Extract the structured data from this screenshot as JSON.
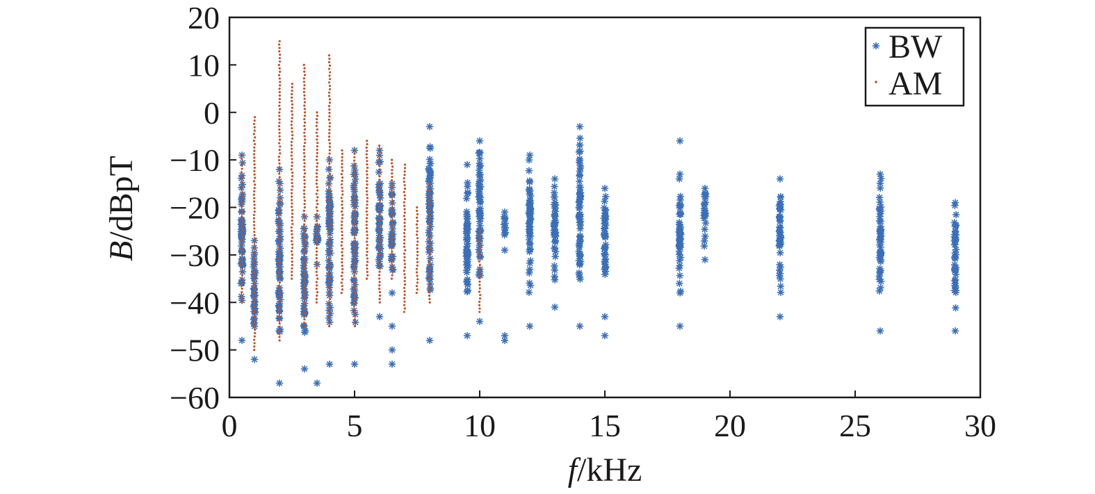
{
  "chart_data": {
    "type": "scatter",
    "xlabel_var": "f",
    "xlabel_unit": "/kHz",
    "ylabel_var": "B",
    "ylabel_unit": "/dBpT",
    "xlim": [
      0,
      30
    ],
    "ylim": [
      -60,
      20
    ],
    "xticks": [
      0,
      5,
      10,
      15,
      20,
      25,
      30
    ],
    "yticks": [
      20,
      10,
      0,
      -10,
      -20,
      -30,
      -40,
      -50,
      -60
    ],
    "xtick_labels": [
      "0",
      "5",
      "10",
      "15",
      "20",
      "25",
      "30"
    ],
    "ytick_labels": [
      "20",
      "10",
      "0",
      "−10",
      "−20",
      "−30",
      "−40",
      "−50",
      "−60"
    ],
    "grid": false,
    "legend_position": "top-right",
    "series": [
      {
        "name": "BW",
        "marker": "asterisk",
        "color": "#3a6fb9",
        "columns": [
          {
            "x": 0.5,
            "ymin": -48,
            "ymax": -9,
            "extra": []
          },
          {
            "x": 1,
            "ymin": -52,
            "ymax": -27,
            "extra": []
          },
          {
            "x": 2,
            "ymin": -57,
            "ymax": -12,
            "extra": []
          },
          {
            "x": 3,
            "ymin": -54,
            "ymax": -22,
            "extra": []
          },
          {
            "x": 3.5,
            "ymin": -32,
            "ymax": -22,
            "extra": [
              -57
            ]
          },
          {
            "x": 4,
            "ymin": -53,
            "ymax": -10,
            "extra": []
          },
          {
            "x": 5,
            "ymin": -53,
            "ymax": -8,
            "extra": []
          },
          {
            "x": 6,
            "ymin": -43,
            "ymax": -8,
            "extra": []
          },
          {
            "x": 6.5,
            "ymin": -38,
            "ymax": -15,
            "extra": [
              -45,
              -50,
              -53
            ]
          },
          {
            "x": 8,
            "ymin": -48,
            "ymax": -3,
            "extra": []
          },
          {
            "x": 9.5,
            "ymin": -47,
            "ymax": -11,
            "extra": []
          },
          {
            "x": 10,
            "ymin": -44,
            "ymax": -6,
            "extra": []
          },
          {
            "x": 11,
            "ymin": -29,
            "ymax": -21,
            "extra": [
              -47,
              -48
            ]
          },
          {
            "x": 12,
            "ymin": -45,
            "ymax": -9,
            "extra": []
          },
          {
            "x": 13,
            "ymin": -41,
            "ymax": -14,
            "extra": []
          },
          {
            "x": 14,
            "ymin": -45,
            "ymax": -3,
            "extra": []
          },
          {
            "x": 15,
            "ymin": -43,
            "ymax": -16,
            "extra": [
              -47
            ]
          },
          {
            "x": 18,
            "ymin": -45,
            "ymax": -13,
            "extra": [
              -6
            ]
          },
          {
            "x": 19,
            "ymin": -31,
            "ymax": -16,
            "extra": []
          },
          {
            "x": 22,
            "ymin": -43,
            "ymax": -14,
            "extra": []
          },
          {
            "x": 26,
            "ymin": -46,
            "ymax": -13,
            "extra": []
          },
          {
            "x": 29,
            "ymin": -46,
            "ymax": -19,
            "extra": []
          }
        ]
      },
      {
        "name": "AM",
        "marker": "dot",
        "color": "#c0502a",
        "columns": [
          {
            "x": 0.5,
            "ymin": -40,
            "ymax": -9,
            "extra": []
          },
          {
            "x": 1,
            "ymin": -50,
            "ymax": -1,
            "extra": []
          },
          {
            "x": 2,
            "ymin": -48,
            "ymax": 15,
            "extra": []
          },
          {
            "x": 2.5,
            "ymin": -35,
            "ymax": 6,
            "extra": []
          },
          {
            "x": 3,
            "ymin": -45,
            "ymax": 10,
            "extra": []
          },
          {
            "x": 3.5,
            "ymin": -40,
            "ymax": 0,
            "extra": []
          },
          {
            "x": 4,
            "ymin": -45,
            "ymax": 12,
            "extra": []
          },
          {
            "x": 4.5,
            "ymin": -38,
            "ymax": -8,
            "extra": []
          },
          {
            "x": 5,
            "ymin": -45,
            "ymax": -8,
            "extra": []
          },
          {
            "x": 5.5,
            "ymin": -35,
            "ymax": -6,
            "extra": []
          },
          {
            "x": 6,
            "ymin": -40,
            "ymax": -7,
            "extra": []
          },
          {
            "x": 6.5,
            "ymin": -35,
            "ymax": -10,
            "extra": []
          },
          {
            "x": 7,
            "ymin": -42,
            "ymax": -11,
            "extra": []
          },
          {
            "x": 7.5,
            "ymin": -38,
            "ymax": -20,
            "extra": []
          },
          {
            "x": 8,
            "ymin": -40,
            "ymax": -15,
            "extra": []
          },
          {
            "x": 10,
            "ymin": -42,
            "ymax": -25,
            "extra": []
          }
        ]
      }
    ]
  }
}
